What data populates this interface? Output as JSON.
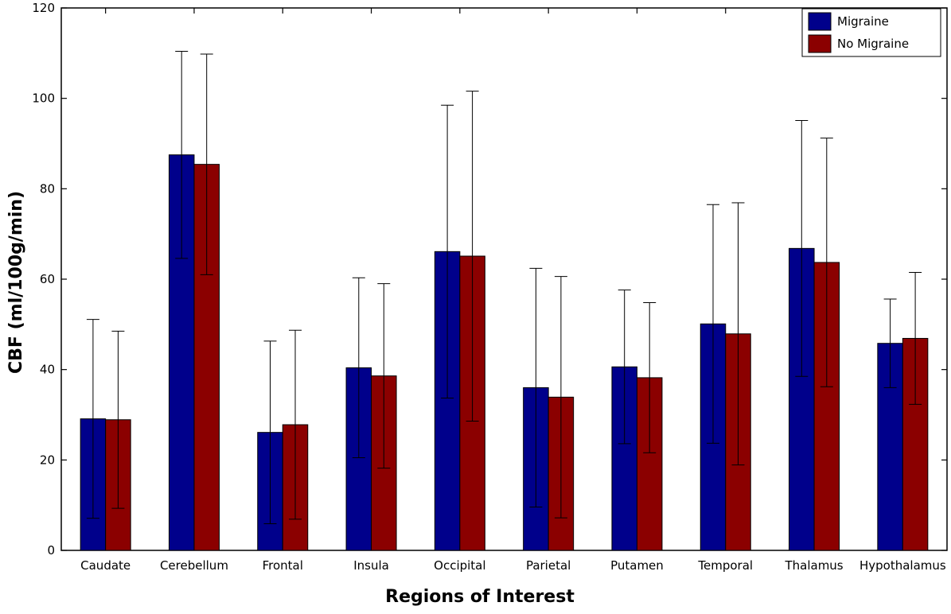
{
  "chart_data": {
    "type": "bar",
    "title": "",
    "xlabel": "Regions of Interest",
    "ylabel": "CBF (ml/100g/min)",
    "ylim": [
      0,
      120
    ],
    "yticks": [
      0,
      20,
      40,
      60,
      80,
      100,
      120
    ],
    "grid": false,
    "legend_position": "top-right",
    "categories": [
      "Caudate",
      "Cerebellum",
      "Frontal",
      "Insula",
      "Occipital",
      "Parietal",
      "Putamen",
      "Temporal",
      "Thalamus",
      "Hypothalamus"
    ],
    "series": [
      {
        "name": "Migraine",
        "color": "#00008b",
        "values": [
          29.1,
          87.5,
          26.1,
          40.4,
          66.1,
          36.0,
          40.6,
          50.1,
          66.8,
          45.8
        ],
        "error": [
          22.0,
          22.9,
          20.2,
          19.9,
          32.4,
          26.4,
          17.0,
          26.4,
          28.3,
          9.8
        ]
      },
      {
        "name": "No Migraine",
        "color": "#8b0000",
        "values": [
          28.9,
          85.4,
          27.8,
          38.6,
          65.1,
          33.9,
          38.2,
          47.9,
          63.7,
          46.9
        ],
        "error": [
          19.6,
          24.4,
          20.9,
          20.4,
          36.5,
          26.7,
          16.6,
          29.0,
          27.5,
          14.6
        ]
      }
    ]
  }
}
